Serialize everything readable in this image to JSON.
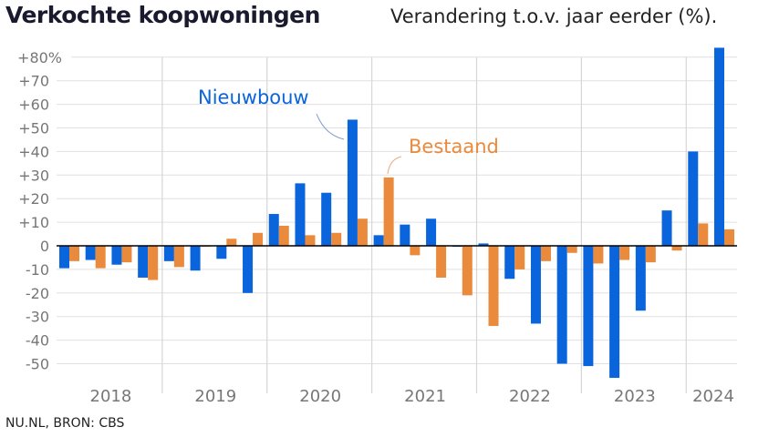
{
  "title": "Verkochte koopwoningen",
  "subtitle": "Verandering t.o.v. jaar eerder (%).",
  "source": "NU.NL, BRON: CBS",
  "chart_data": {
    "type": "bar",
    "ylim": [
      -55,
      84
    ],
    "yticks": [
      80,
      70,
      60,
      50,
      40,
      30,
      20,
      10,
      0,
      -10,
      -20,
      -30,
      -40,
      -50
    ],
    "ytick_labels": [
      "+80%",
      "+70",
      "+60",
      "+50",
      "+40",
      "+30",
      "+20",
      "+10",
      "0",
      "-10",
      "-20",
      "-30",
      "-40",
      "-50"
    ],
    "years": [
      "2018",
      "2019",
      "2020",
      "2021",
      "2022",
      "2023",
      "2024"
    ],
    "categories": [
      "2018 Q1",
      "2018 Q2",
      "2018 Q3",
      "2018 Q4",
      "2019 Q1",
      "2019 Q2",
      "2019 Q3",
      "2019 Q4",
      "2020 Q1",
      "2020 Q2",
      "2020 Q3",
      "2020 Q4",
      "2021 Q1",
      "2021 Q2",
      "2021 Q3",
      "2021 Q4",
      "2022 Q1",
      "2022 Q2",
      "2022 Q3",
      "2022 Q4",
      "2023 Q1",
      "2023 Q2",
      "2023 Q3",
      "2023 Q4",
      "2024 Q1",
      "2024 Q2"
    ],
    "grid": true,
    "series": [
      {
        "name": "Nieuwbouw",
        "color": "#0a64dc",
        "values": [
          -9.5,
          -6,
          -8,
          -13.5,
          -6.5,
          -10.5,
          -5.5,
          -20,
          13.5,
          26.5,
          22.5,
          53.5,
          4.5,
          9,
          11.5,
          -0.3,
          1,
          -14,
          -33,
          -50,
          -51,
          -56,
          -27.5,
          15,
          40,
          84
        ]
      },
      {
        "name": "Bestaand",
        "color": "#ea8a3c",
        "values": [
          -6.5,
          -9.5,
          -7,
          -14.5,
          -9,
          -0.3,
          3,
          5.5,
          8.5,
          4.5,
          5.5,
          11.5,
          29,
          -4,
          -13.5,
          -21,
          -34,
          -10,
          -6.5,
          -3,
          -7.5,
          -6,
          -7,
          -2,
          9.5,
          7
        ]
      }
    ]
  }
}
